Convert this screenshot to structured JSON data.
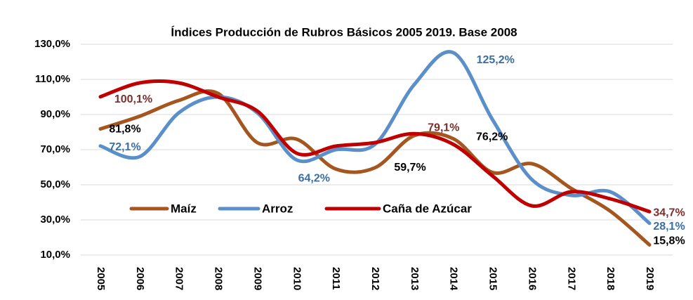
{
  "chart_data": {
    "type": "line",
    "title": "Índices Producción de Rubros Básicos 2005 2019. Base 2008",
    "categories": [
      "2005",
      "2006",
      "2007",
      "2008",
      "2009",
      "2010",
      "2011",
      "2012",
      "2013",
      "2014",
      "2015",
      "2016",
      "2017",
      "2018",
      "2019"
    ],
    "series": [
      {
        "name": "Maíz",
        "color": "#a5561f",
        "label_color": "#000000",
        "values": [
          81.8,
          89,
          98,
          102,
          74,
          76,
          59,
          59.7,
          78,
          76.2,
          57,
          62,
          48,
          35,
          15.8
        ],
        "value_labels": [
          "81,8%",
          null,
          null,
          null,
          null,
          null,
          null,
          "59,7%",
          null,
          "76,2%",
          null,
          null,
          null,
          null,
          "15,8%"
        ]
      },
      {
        "name": "Arroz",
        "color": "#5b8fc9",
        "label_color": "#3a6ea5",
        "values": [
          72.1,
          66,
          91,
          100,
          91,
          64.2,
          70,
          73,
          107,
          125.2,
          87,
          53,
          44,
          46,
          28.1
        ],
        "value_labels": [
          "72,1%",
          null,
          null,
          null,
          null,
          "64,2%",
          null,
          null,
          null,
          "125,2%",
          null,
          null,
          null,
          null,
          "28,1%"
        ]
      },
      {
        "name": "Caña de Azúcar",
        "color": "#c00000",
        "label_color": "#7b2e2e",
        "values": [
          100.1,
          108,
          108,
          100,
          92,
          68,
          72,
          74,
          79.1,
          73,
          55,
          38,
          46,
          42,
          34.7
        ],
        "value_labels": [
          "100,1%",
          null,
          null,
          null,
          null,
          null,
          null,
          null,
          "79,1%",
          null,
          null,
          null,
          null,
          null,
          "34,7%"
        ]
      }
    ],
    "ylim": [
      10,
      130
    ],
    "yticks": [
      {
        "value": 10,
        "label": "10,0%"
      },
      {
        "value": 30,
        "label": "30,0%"
      },
      {
        "value": 50,
        "label": "50,0%"
      },
      {
        "value": 70,
        "label": "70,0%"
      },
      {
        "value": 90,
        "label": "90,0%"
      },
      {
        "value": 110,
        "label": "110,0%"
      },
      {
        "value": 130,
        "label": "130,0%"
      }
    ],
    "grid": true,
    "legend": "center"
  }
}
